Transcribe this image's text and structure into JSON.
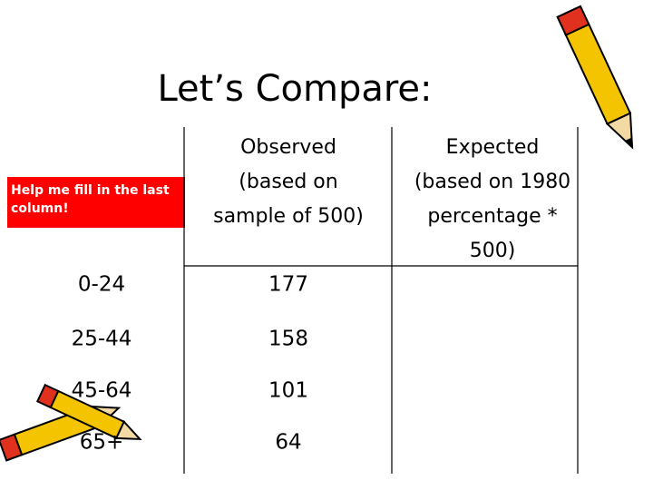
{
  "title": "Let’s Compare:",
  "note": "Help me fill in the last column!",
  "table": {
    "headers": [
      [
        "Observed",
        "(based on",
        "sample of 500)"
      ],
      [
        "Expected",
        "(based on 1980",
        "percentage *",
        "500)"
      ]
    ],
    "rows": [
      [
        "0-24",
        177
      ],
      [
        "25-44",
        158
      ],
      [
        "45-64",
        101
      ],
      [
        "65+",
        64
      ]
    ]
  }
}
